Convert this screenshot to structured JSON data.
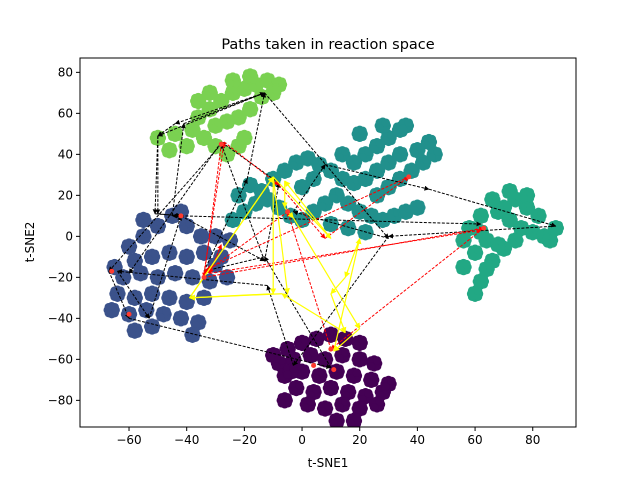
{
  "chart_data": {
    "type": "scatter",
    "title": "Paths taken in reaction space",
    "xlabel": "t-SNE1",
    "ylabel": "t-SNE2",
    "xlim": [
      -77,
      95
    ],
    "ylim": [
      -93,
      87
    ],
    "xticks": [
      -60,
      -40,
      -20,
      0,
      20,
      40,
      60,
      80
    ],
    "yticks": [
      -80,
      -60,
      -40,
      -20,
      0,
      20,
      40,
      60,
      80
    ],
    "grid": false,
    "clusters": [
      {
        "color": "#440154",
        "points": [
          [
            -5,
            -55
          ],
          [
            0,
            -52
          ],
          [
            5,
            -50
          ],
          [
            10,
            -48
          ],
          [
            15,
            -50
          ],
          [
            20,
            -52
          ],
          [
            -8,
            -62
          ],
          [
            -3,
            -60
          ],
          [
            3,
            -58
          ],
          [
            8,
            -60
          ],
          [
            14,
            -58
          ],
          [
            20,
            -60
          ],
          [
            25,
            -62
          ],
          [
            -6,
            -68
          ],
          [
            0,
            -66
          ],
          [
            6,
            -68
          ],
          [
            12,
            -66
          ],
          [
            18,
            -68
          ],
          [
            24,
            -70
          ],
          [
            -2,
            -74
          ],
          [
            4,
            -76
          ],
          [
            10,
            -74
          ],
          [
            16,
            -76
          ],
          [
            22,
            -78
          ],
          [
            28,
            -76
          ],
          [
            2,
            -82
          ],
          [
            8,
            -84
          ],
          [
            14,
            -82
          ],
          [
            20,
            -84
          ],
          [
            26,
            -82
          ],
          [
            -10,
            -58
          ],
          [
            -4,
            -66
          ],
          [
            30,
            -72
          ],
          [
            -6,
            -80
          ],
          [
            12,
            -90
          ],
          [
            18,
            -90
          ]
        ]
      },
      {
        "color": "#3b528b",
        "points": [
          [
            -60,
            -5
          ],
          [
            -55,
            0
          ],
          [
            -50,
            5
          ],
          [
            -45,
            10
          ],
          [
            -40,
            5
          ],
          [
            -35,
            0
          ],
          [
            -30,
            0
          ],
          [
            -25,
            -2
          ],
          [
            -58,
            -12
          ],
          [
            -52,
            -10
          ],
          [
            -46,
            -8
          ],
          [
            -40,
            -10
          ],
          [
            -34,
            -8
          ],
          [
            -28,
            -10
          ],
          [
            -62,
            -20
          ],
          [
            -56,
            -18
          ],
          [
            -50,
            -20
          ],
          [
            -44,
            -18
          ],
          [
            -38,
            -20
          ],
          [
            -32,
            -22
          ],
          [
            -26,
            -20
          ],
          [
            -64,
            -28
          ],
          [
            -58,
            -30
          ],
          [
            -52,
            -28
          ],
          [
            -46,
            -30
          ],
          [
            -40,
            -32
          ],
          [
            -34,
            -30
          ],
          [
            -66,
            -36
          ],
          [
            -60,
            -38
          ],
          [
            -54,
            -36
          ],
          [
            -48,
            -38
          ],
          [
            -42,
            -40
          ],
          [
            -36,
            -42
          ],
          [
            -58,
            -46
          ],
          [
            -52,
            -44
          ],
          [
            -38,
            -48
          ],
          [
            -65,
            -15
          ],
          [
            -55,
            8
          ],
          [
            -42,
            12
          ],
          [
            -30,
            -14
          ]
        ]
      },
      {
        "color": "#21908c",
        "points": [
          [
            -22,
            20
          ],
          [
            -18,
            25
          ],
          [
            -14,
            22
          ],
          [
            -10,
            28
          ],
          [
            -6,
            32
          ],
          [
            -2,
            36
          ],
          [
            2,
            38
          ],
          [
            6,
            35
          ],
          [
            10,
            32
          ],
          [
            14,
            28
          ],
          [
            18,
            26
          ],
          [
            22,
            28
          ],
          [
            26,
            32
          ],
          [
            30,
            36
          ],
          [
            34,
            40
          ],
          [
            22,
            40
          ],
          [
            26,
            44
          ],
          [
            30,
            48
          ],
          [
            34,
            52
          ],
          [
            20,
            50
          ],
          [
            28,
            54
          ],
          [
            36,
            54
          ],
          [
            -20,
            12
          ],
          [
            -16,
            16
          ],
          [
            -12,
            18
          ],
          [
            -8,
            14
          ],
          [
            -4,
            10
          ],
          [
            0,
            8
          ],
          [
            4,
            12
          ],
          [
            8,
            16
          ],
          [
            12,
            20
          ],
          [
            16,
            16
          ],
          [
            20,
            12
          ],
          [
            24,
            10
          ],
          [
            28,
            8
          ],
          [
            32,
            10
          ],
          [
            36,
            12
          ],
          [
            40,
            14
          ],
          [
            26,
            20
          ],
          [
            30,
            24
          ],
          [
            34,
            28
          ],
          [
            38,
            32
          ],
          [
            42,
            36
          ],
          [
            46,
            40
          ],
          [
            44,
            46
          ],
          [
            40,
            42
          ],
          [
            14,
            40
          ],
          [
            18,
            36
          ],
          [
            -24,
            8
          ],
          [
            10,
            6
          ],
          [
            16,
            4
          ],
          [
            22,
            2
          ],
          [
            0,
            24
          ],
          [
            4,
            28
          ]
        ]
      },
      {
        "color": "#22a884",
        "points": [
          [
            62,
            -22
          ],
          [
            56,
            -15
          ],
          [
            60,
            -8
          ],
          [
            66,
            -12
          ],
          [
            70,
            -6
          ],
          [
            64,
            -2
          ],
          [
            58,
            4
          ],
          [
            62,
            10
          ],
          [
            68,
            12
          ],
          [
            72,
            8
          ],
          [
            76,
            4
          ],
          [
            80,
            2
          ],
          [
            84,
            0
          ],
          [
            88,
            4
          ],
          [
            86,
            -2
          ],
          [
            82,
            10
          ],
          [
            78,
            14
          ],
          [
            74,
            18
          ],
          [
            70,
            14
          ],
          [
            66,
            18
          ],
          [
            72,
            22
          ],
          [
            78,
            20
          ],
          [
            56,
            -2
          ],
          [
            64,
            -16
          ],
          [
            60,
            -28
          ],
          [
            68,
            -4
          ],
          [
            74,
            -2
          ],
          [
            62,
            2
          ]
        ]
      },
      {
        "color": "#7ad151",
        "points": [
          [
            -50,
            48
          ],
          [
            -44,
            50
          ],
          [
            -38,
            52
          ],
          [
            -34,
            48
          ],
          [
            -30,
            44
          ],
          [
            -26,
            40
          ],
          [
            -22,
            44
          ],
          [
            -20,
            48
          ],
          [
            -40,
            44
          ],
          [
            -46,
            42
          ],
          [
            -36,
            58
          ],
          [
            -32,
            62
          ],
          [
            -28,
            66
          ],
          [
            -24,
            70
          ],
          [
            -20,
            72
          ],
          [
            -16,
            74
          ],
          [
            -12,
            76
          ],
          [
            -8,
            74
          ],
          [
            -14,
            68
          ],
          [
            -18,
            62
          ],
          [
            -22,
            58
          ],
          [
            -26,
            56
          ],
          [
            -30,
            54
          ],
          [
            -36,
            66
          ],
          [
            -32,
            70
          ],
          [
            -24,
            76
          ],
          [
            -18,
            78
          ],
          [
            -10,
            70
          ]
        ]
      }
    ],
    "black_paths": [
      [
        [
          -42,
          10
        ],
        [
          -13,
          -12
        ],
        [
          -28,
          45
        ],
        [
          -67,
          -17
        ],
        [
          -60,
          -40
        ],
        [
          10,
          -64
        ],
        [
          -13,
          -10
        ],
        [
          -34,
          -17
        ],
        [
          -19,
          28
        ],
        [
          -13,
          70
        ],
        [
          -50,
          49
        ],
        [
          -50,
          11
        ],
        [
          -42,
          10
        ]
      ],
      [
        [
          -42,
          10
        ],
        [
          -45,
          10
        ],
        [
          -41,
          55
        ],
        [
          -13,
          70
        ],
        [
          30,
          -1
        ],
        [
          -3,
          12
        ],
        [
          8,
          35
        ],
        [
          44,
          23
        ],
        [
          88,
          5
        ],
        [
          30,
          0
        ],
        [
          -3,
          -63
        ],
        [
          -12,
          -24
        ],
        [
          -64,
          -17
        ],
        [
          -53,
          -40
        ],
        [
          -42,
          10
        ]
      ],
      [
        [
          -13,
          70
        ],
        [
          -44,
          55
        ],
        [
          -50,
          49
        ],
        [
          -51,
          11
        ],
        [
          -42,
          10
        ],
        [
          62,
          6
        ]
      ],
      [
        [
          -13,
          -12
        ],
        [
          -8,
          26
        ],
        [
          -28,
          46
        ],
        [
          -60,
          -18
        ]
      ]
    ],
    "red_paths": [
      [
        [
          -28,
          45
        ],
        [
          -34,
          -20
        ],
        [
          63,
          4
        ],
        [
          10,
          -55
        ],
        [
          -5,
          12
        ],
        [
          -34,
          -18
        ],
        [
          -27,
          46
        ],
        [
          -8,
          25
        ],
        [
          8,
          -1
        ],
        [
          37,
          29
        ],
        [
          -33,
          -16
        ],
        [
          -32,
          -18
        ]
      ],
      [
        [
          -32,
          -18
        ],
        [
          -28,
          -4
        ],
        [
          -32,
          -18
        ],
        [
          62,
          3
        ]
      ]
    ],
    "red_markers": [
      [
        -28,
        45
      ],
      [
        -34,
        -20
      ],
      [
        63,
        4
      ],
      [
        10,
        -55
      ],
      [
        -5,
        12
      ],
      [
        37,
        29
      ],
      [
        4,
        -63
      ],
      [
        -66,
        -17
      ],
      [
        -60,
        -38
      ],
      [
        -42,
        10
      ],
      [
        11,
        -65
      ]
    ],
    "yellow_paths": [
      [
        [
          -10,
          29
        ],
        [
          -10,
          -28
        ],
        [
          -39,
          -30
        ],
        [
          -10,
          29
        ],
        [
          10,
          -1
        ],
        [
          -6,
          27
        ],
        [
          -6,
          14
        ],
        [
          -3,
          9
        ],
        [
          20,
          -45
        ],
        [
          11,
          -56
        ],
        [
          20,
          -1
        ],
        [
          15,
          -20
        ],
        [
          10,
          -28
        ],
        [
          15,
          -47
        ],
        [
          -7,
          -28
        ],
        [
          -39,
          -30
        ],
        [
          -10,
          29
        ],
        [
          -5,
          -28
        ]
      ]
    ]
  }
}
